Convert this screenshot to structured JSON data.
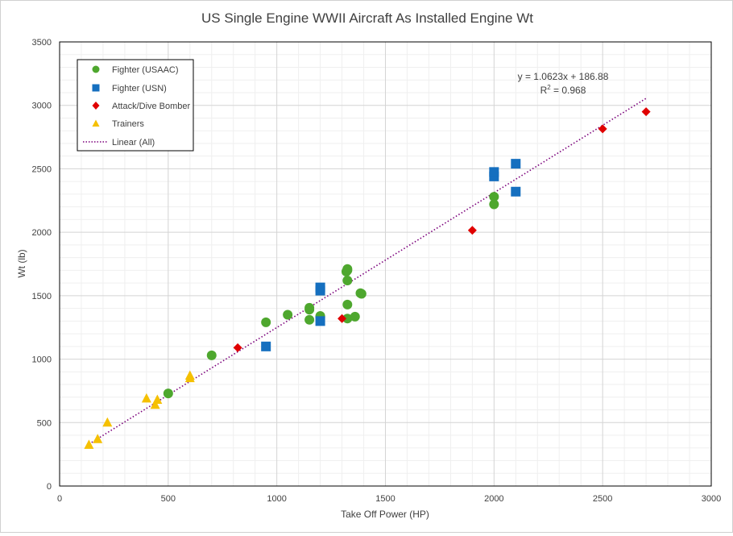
{
  "chart_data": {
    "type": "scatter",
    "title": "US Single Engine WWII Aircraft As Installed Engine Wt",
    "xlabel": "Take Off Power (HP)",
    "ylabel": "Wt (lb)",
    "xlim": [
      0,
      3000
    ],
    "ylim": [
      0,
      3500
    ],
    "x_major_ticks": [
      0,
      500,
      1000,
      1500,
      2000,
      2500,
      3000
    ],
    "y_major_ticks": [
      0,
      500,
      1000,
      1500,
      2000,
      2500,
      3000,
      3500
    ],
    "x_minor_step": 100,
    "y_minor_step": 100,
    "grid": "major and minor",
    "legend_position": "top-left",
    "series": [
      {
        "name": "Fighter (USAAC)",
        "marker": "circle",
        "color": "#4ea72e",
        "points": [
          [
            500,
            730
          ],
          [
            700,
            1030
          ],
          [
            950,
            1290
          ],
          [
            1050,
            1350
          ],
          [
            1150,
            1310
          ],
          [
            1150,
            1390
          ],
          [
            1150,
            1405
          ],
          [
            1200,
            1330
          ],
          [
            1200,
            1340
          ],
          [
            1325,
            1320
          ],
          [
            1325,
            1430
          ],
          [
            1325,
            1620
          ],
          [
            1325,
            1700
          ],
          [
            1325,
            1710
          ],
          [
            1320,
            1690
          ],
          [
            1360,
            1335
          ],
          [
            1385,
            1520
          ],
          [
            1390,
            1515
          ],
          [
            2000,
            2220
          ],
          [
            2000,
            2280
          ]
        ]
      },
      {
        "name": "Fighter (USN)",
        "marker": "square",
        "color": "#156fbf",
        "points": [
          [
            950,
            1100
          ],
          [
            1200,
            1300
          ],
          [
            1200,
            1540
          ],
          [
            1200,
            1565
          ],
          [
            2000,
            2440
          ],
          [
            2000,
            2475
          ],
          [
            2100,
            2320
          ],
          [
            2100,
            2540
          ]
        ]
      },
      {
        "name": "Attack/Dive Bomber",
        "marker": "diamond",
        "color": "#e00000",
        "points": [
          [
            820,
            1090
          ],
          [
            1300,
            1320
          ],
          [
            1900,
            2015
          ],
          [
            2500,
            2815
          ],
          [
            2700,
            2950
          ]
        ]
      },
      {
        "name": "Trainers",
        "marker": "triangle",
        "color": "#f5c000",
        "points": [
          [
            135,
            325
          ],
          [
            175,
            370
          ],
          [
            220,
            500
          ],
          [
            400,
            690
          ],
          [
            440,
            640
          ],
          [
            450,
            680
          ],
          [
            600,
            850
          ],
          [
            600,
            870
          ]
        ]
      }
    ],
    "trendline": {
      "name": "Linear (All)",
      "style": "dotted",
      "color": "#7b007b",
      "slope": 1.0623,
      "intercept": 186.88,
      "x_range": [
        135,
        2700
      ],
      "equation_label": "y = 1.0623x + 186.88",
      "r2_prefix": "R",
      "r2_sup": "2",
      "r2_suffix": " = 0.968"
    }
  }
}
